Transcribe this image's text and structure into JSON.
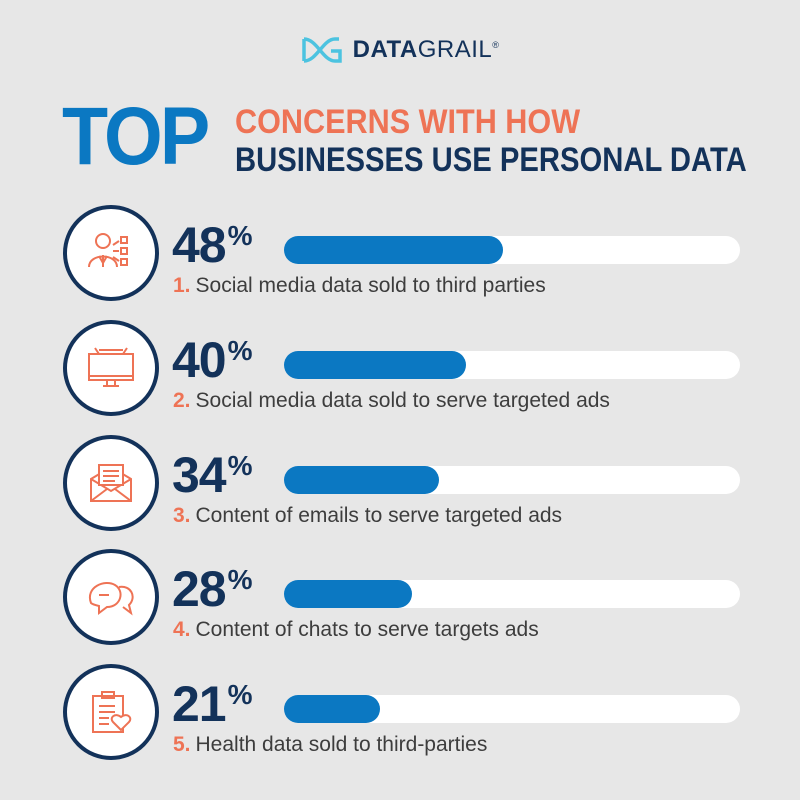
{
  "brand": {
    "name_bold": "DATA",
    "name_light": "GRAIL",
    "registered": "®"
  },
  "title": {
    "big": "TOP",
    "line1": "CONCERNS WITH HOW",
    "line2": "BUSINESSES USE PERSONAL DATA"
  },
  "colors": {
    "bar": "#0b78c2",
    "track": "#ffffff",
    "navy": "#13325a",
    "coral": "#ee7355",
    "background": "#e7e7e7"
  },
  "chart_data": {
    "type": "bar",
    "orientation": "horizontal",
    "title": "TOP CONCERNS WITH HOW BUSINESSES USE PERSONAL DATA",
    "unit": "%",
    "xlim": [
      0,
      100
    ],
    "items": [
      {
        "rank": "1.",
        "label": "Social media data sold to third parties",
        "value": 48,
        "value_label": "48",
        "icon": "speaking-person-icon"
      },
      {
        "rank": "2.",
        "label": "Social media data sold to serve targeted ads",
        "value": 40,
        "value_label": "40",
        "icon": "billboard-monitor-icon"
      },
      {
        "rank": "3.",
        "label": "Content of emails to serve targeted ads",
        "value": 34,
        "value_label": "34",
        "icon": "envelope-letter-icon"
      },
      {
        "rank": "4.",
        "label": "Content of chats to serve targets ads",
        "value": 28,
        "value_label": "28",
        "icon": "chat-bubbles-icon"
      },
      {
        "rank": "5.",
        "label": "Health data sold to third-parties",
        "value": 21,
        "value_label": "21",
        "icon": "clipboard-heart-icon"
      }
    ]
  }
}
